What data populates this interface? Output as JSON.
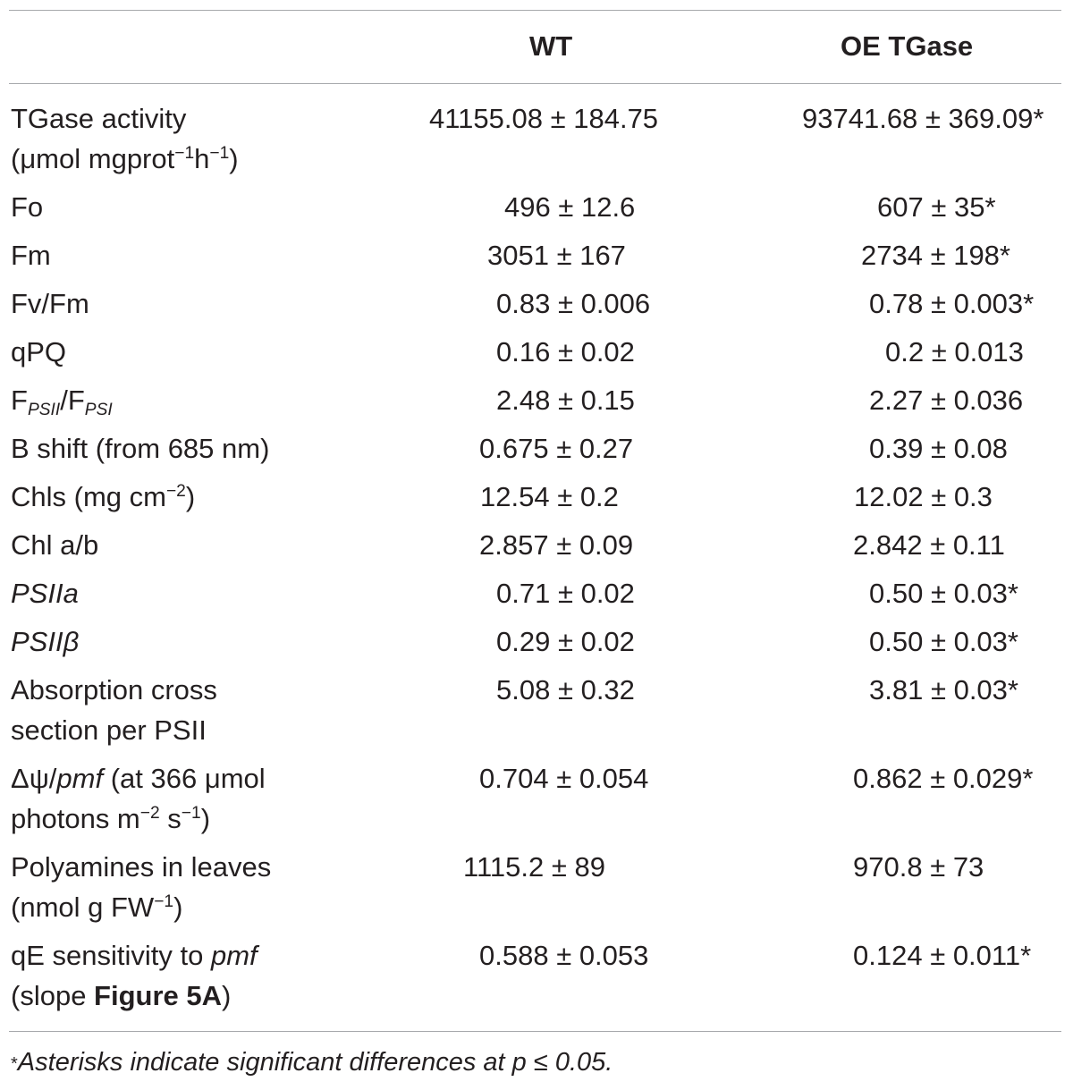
{
  "table": {
    "headers": {
      "wt": "WT",
      "oe": "OE TGase"
    },
    "rows": [
      {
        "label_line1": "TGase activity",
        "label_line2_pre": "(μmol mgprot",
        "label_line2_sup1": "−1",
        "label_line2_mid": "h",
        "label_line2_sup2": "−1",
        "label_line2_post": ")",
        "wt": "41155.08 ± 184.75",
        "oe": "93741.68 ± 369.09*"
      },
      {
        "label": "Fo",
        "wt": "496 ± 12.6",
        "oe": "607 ± 35*"
      },
      {
        "label": "Fm",
        "wt": "3051 ± 167",
        "oe": "2734 ± 198*"
      },
      {
        "label": "Fv/Fm",
        "wt": "0.83 ± 0.006",
        "oe": "0.78 ± 0.003*"
      },
      {
        "label": "qPQ",
        "wt": "0.16 ± 0.02",
        "oe": "0.2 ± 0.013"
      },
      {
        "label_a": "F",
        "label_sub_a": "PSII",
        "label_b": "/F",
        "label_sub_b": "PSI",
        "wt": "2.48 ± 0.15",
        "oe": "2.27 ± 0.036"
      },
      {
        "label": "B shift (from 685 nm)",
        "wt": "0.675 ± 0.27",
        "oe": "0.39 ± 0.08"
      },
      {
        "label_pre": "Chls (mg cm",
        "label_sup": "−2",
        "label_post": ")",
        "wt": "12.54 ± 0.2",
        "oe": "12.02 ± 0.3"
      },
      {
        "label": "Chl a/b",
        "wt": "2.857 ± 0.09",
        "oe": "2.842 ± 0.11"
      },
      {
        "label": "PSIIa",
        "wt": "0.71 ± 0.02",
        "oe": "0.50 ± 0.03*"
      },
      {
        "label": "PSIIβ",
        "wt": "0.29 ± 0.02",
        "oe": "0.50 ± 0.03*"
      },
      {
        "label_line1": "Absorption cross",
        "label_line2": "section per PSII",
        "wt": "5.08 ± 0.32",
        "oe": "3.81 ± 0.03*"
      },
      {
        "label_delta": "Δψ/",
        "label_pmf": "pmf",
        "label_line1_rest": " (at 366 μmol",
        "label_line2_pre": "photons m",
        "label_line2_sup1": "−2",
        "label_line2_mid": " s",
        "label_line2_sup2": "−1",
        "label_line2_post": ")",
        "wt": "0.704 ± 0.054",
        "oe": "0.862 ± 0.029*"
      },
      {
        "label_line1": "Polyamines in leaves",
        "label_line2_pre": "(nmol g FW",
        "label_line2_sup": "−1",
        "label_line2_post": ")",
        "wt": "1115.2 ± 89",
        "oe": "970.8 ± 73"
      },
      {
        "label_line1_pre": "qE sensitivity to ",
        "label_line1_pmf": "pmf",
        "label_line2_pre": "(slope ",
        "label_line2_bold": "Figure 5A",
        "label_line2_post": ")",
        "wt": "0.588 ± 0.053",
        "oe": "0.124 ± 0.011*"
      }
    ]
  },
  "footnote": {
    "asterisk": "*",
    "text": "Asterisks indicate significant differences at p ≤ 0.05."
  }
}
